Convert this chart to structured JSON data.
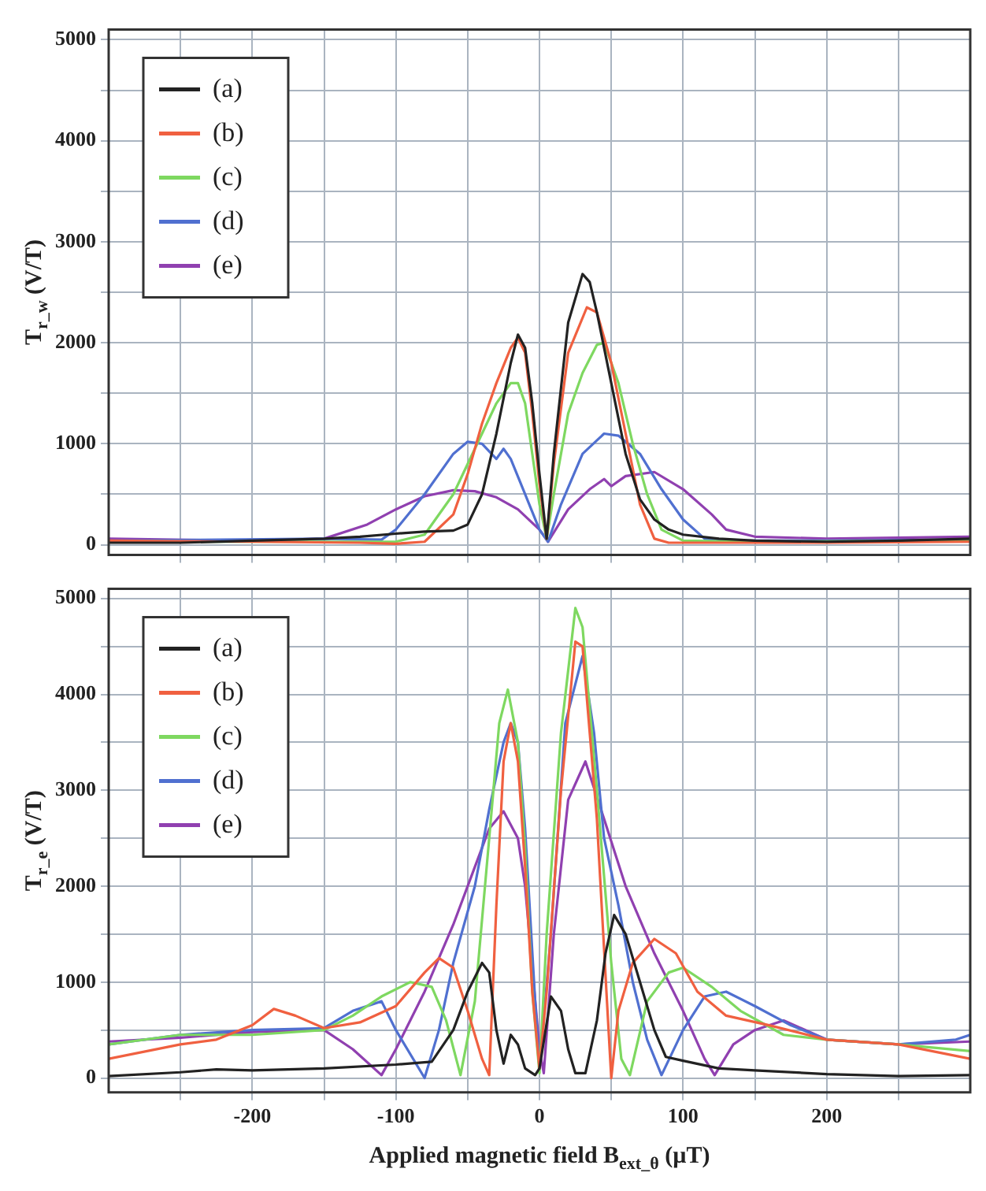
{
  "chart_data": [
    {
      "type": "line",
      "ylabel": "T$_{r_w}$ (V/T)",
      "xlim": [
        -300,
        300
      ],
      "ylim": [
        -100,
        5100
      ],
      "xticks": [
        -250,
        -200,
        -150,
        -100,
        -50,
        0,
        50,
        100,
        150,
        200,
        250
      ],
      "yticks": [
        0,
        {
          "value": 500,
          "label": null
        },
        1000,
        {
          "value": 1500,
          "label": null
        },
        2000,
        {
          "value": 2500,
          "label": null
        },
        3000,
        {
          "value": 3500,
          "label": null
        },
        4000,
        {
          "value": 4500,
          "label": null
        },
        5000
      ],
      "grid": true,
      "legend": "top left",
      "tick_labels": "y",
      "marker": "none",
      "line_style": "solid",
      "series": [
        {
          "name": "(a)",
          "color": "#222222",
          "x": [
            -300,
            -250,
            -200,
            -150,
            -125,
            -100,
            -80,
            -60,
            -50,
            -40,
            -30,
            -20,
            -15,
            -10,
            -5,
            0,
            5,
            10,
            20,
            30,
            35,
            40,
            50,
            60,
            70,
            80,
            90,
            100,
            125,
            150,
            200,
            250,
            300
          ],
          "values": [
            20,
            20,
            40,
            60,
            80,
            110,
            130,
            140,
            200,
            500,
            1100,
            1800,
            2080,
            1950,
            1400,
            700,
            60,
            900,
            2200,
            2680,
            2600,
            2300,
            1600,
            900,
            450,
            250,
            150,
            100,
            60,
            40,
            30,
            40,
            60
          ]
        },
        {
          "name": "(b)",
          "color": "#f06040",
          "x": [
            -300,
            -200,
            -125,
            -100,
            -80,
            -60,
            -50,
            -40,
            -30,
            -20,
            -15,
            -10,
            -5,
            0,
            5,
            10,
            20,
            33,
            40,
            50,
            60,
            70,
            80,
            90,
            125,
            200,
            300
          ],
          "values": [
            40,
            30,
            20,
            10,
            30,
            300,
            700,
            1200,
            1600,
            1950,
            2050,
            1900,
            1300,
            600,
            60,
            800,
            1900,
            2350,
            2300,
            1800,
            1100,
            400,
            60,
            20,
            20,
            20,
            30
          ]
        },
        {
          "name": "(c)",
          "color": "#7ed860",
          "x": [
            -300,
            -200,
            -100,
            -80,
            -60,
            -40,
            -30,
            -20,
            -15,
            -10,
            -5,
            0,
            5,
            10,
            20,
            30,
            40,
            45,
            55,
            65,
            75,
            85,
            100,
            150,
            300
          ],
          "values": [
            30,
            30,
            30,
            100,
            500,
            1100,
            1400,
            1600,
            1600,
            1400,
            900,
            400,
            60,
            500,
            1300,
            1700,
            1980,
            2000,
            1600,
            1000,
            500,
            150,
            40,
            30,
            40
          ]
        },
        {
          "name": "(d)",
          "color": "#5070d0",
          "x": [
            -300,
            -150,
            -110,
            -100,
            -80,
            -60,
            -50,
            -40,
            -30,
            -25,
            -20,
            -10,
            0,
            6,
            15,
            30,
            45,
            55,
            70,
            85,
            100,
            115,
            130,
            200,
            300
          ],
          "values": [
            40,
            60,
            50,
            150,
            500,
            900,
            1020,
            1000,
            850,
            950,
            850,
            500,
            150,
            30,
            400,
            900,
            1100,
            1080,
            900,
            550,
            250,
            60,
            40,
            40,
            50
          ]
        },
        {
          "name": "(e)",
          "color": "#9040b0",
          "x": [
            -300,
            -200,
            -150,
            -120,
            -100,
            -80,
            -60,
            -45,
            -30,
            -15,
            0,
            6,
            20,
            35,
            45,
            50,
            60,
            80,
            100,
            120,
            130,
            150,
            200,
            300
          ],
          "values": [
            60,
            40,
            60,
            200,
            350,
            480,
            540,
            530,
            470,
            350,
            150,
            30,
            350,
            550,
            650,
            580,
            680,
            720,
            550,
            300,
            150,
            80,
            60,
            80
          ]
        }
      ]
    },
    {
      "type": "line",
      "ylabel": "T$_{r_e}$ (V/T)",
      "xlabel": "Applied magnetic field B$_{ext_θ}$ (µT)",
      "xlim": [
        -300,
        300
      ],
      "ylim": [
        -150,
        5100
      ],
      "xticks": [
        {
          "value": -250,
          "label": null
        },
        {
          "value": -200,
          "label": "-200"
        },
        {
          "value": -150,
          "label": null
        },
        {
          "value": -100,
          "label": "-100"
        },
        {
          "value": -50,
          "label": null
        },
        0,
        {
          "value": 50,
          "label": null
        },
        100,
        {
          "value": 150,
          "label": null
        },
        200,
        {
          "value": 250,
          "label": null
        }
      ],
      "yticks": [
        0,
        {
          "value": 500,
          "label": null
        },
        1000,
        {
          "value": 1500,
          "label": null
        },
        2000,
        {
          "value": 2500,
          "label": null
        },
        3000,
        {
          "value": 3500,
          "label": null
        },
        4000,
        {
          "value": 4500,
          "label": null
        },
        5000
      ],
      "grid": true,
      "legend": "top left",
      "marker": "none",
      "line_style": "solid",
      "series": [
        {
          "name": "(a)",
          "color": "#222222",
          "x": [
            -300,
            -250,
            -225,
            -200,
            -150,
            -100,
            -75,
            -60,
            -50,
            -40,
            -35,
            -30,
            -25,
            -20,
            -15,
            -10,
            -3,
            0,
            8,
            15,
            20,
            25,
            32,
            40,
            46,
            52,
            60,
            70,
            80,
            88,
            100,
            125,
            150,
            200,
            250,
            300
          ],
          "values": [
            20,
            60,
            90,
            80,
            100,
            140,
            170,
            500,
            900,
            1200,
            1100,
            500,
            150,
            450,
            350,
            100,
            30,
            100,
            850,
            700,
            300,
            50,
            50,
            600,
            1300,
            1700,
            1500,
            1000,
            500,
            220,
            180,
            100,
            80,
            40,
            20,
            30
          ]
        },
        {
          "name": "(b)",
          "color": "#f06040",
          "x": [
            -300,
            -250,
            -225,
            -200,
            -185,
            -170,
            -150,
            -125,
            -100,
            -80,
            -70,
            -60,
            -50,
            -40,
            -35,
            -30,
            -25,
            -20,
            -15,
            -10,
            -5,
            0,
            5,
            15,
            25,
            30,
            40,
            47,
            50,
            55,
            65,
            80,
            95,
            110,
            130,
            160,
            200,
            250,
            300
          ],
          "values": [
            200,
            350,
            400,
            550,
            720,
            650,
            520,
            580,
            750,
            1100,
            1250,
            1150,
            700,
            200,
            30,
            1800,
            3300,
            3700,
            3300,
            2200,
            900,
            100,
            900,
            3000,
            4550,
            4500,
            2700,
            800,
            0,
            700,
            1200,
            1450,
            1300,
            900,
            650,
            550,
            400,
            350,
            200
          ]
        },
        {
          "name": "(c)",
          "color": "#7ed860",
          "x": [
            -300,
            -250,
            -200,
            -150,
            -130,
            -110,
            -90,
            -75,
            -65,
            -55,
            -45,
            -35,
            -28,
            -22,
            -15,
            -10,
            -5,
            0,
            5,
            15,
            25,
            30,
            40,
            50,
            57,
            63,
            75,
            90,
            100,
            120,
            140,
            170,
            200,
            250,
            300
          ],
          "values": [
            350,
            450,
            450,
            500,
            650,
            850,
            1000,
            950,
            600,
            30,
            800,
            2500,
            3700,
            4050,
            3500,
            2400,
            900,
            50,
            1500,
            3600,
            4900,
            4700,
            3000,
            1200,
            200,
            30,
            800,
            1100,
            1150,
            950,
            700,
            450,
            400,
            350,
            280
          ]
        },
        {
          "name": "(d)",
          "color": "#5070d0",
          "x": [
            -300,
            -250,
            -200,
            -150,
            -130,
            -110,
            -100,
            -80,
            -70,
            -60,
            -45,
            -35,
            -25,
            -20,
            -15,
            -10,
            -3,
            0,
            8,
            18,
            30,
            38,
            45,
            55,
            65,
            75,
            85,
            100,
            115,
            130,
            150,
            175,
            200,
            250,
            290,
            300
          ],
          "values": [
            350,
            450,
            500,
            520,
            700,
            800,
            500,
            0,
            500,
            1200,
            2000,
            2800,
            3500,
            3700,
            3500,
            2600,
            800,
            100,
            1500,
            3700,
            4400,
            3600,
            2500,
            1800,
            1000,
            400,
            30,
            500,
            850,
            900,
            750,
            550,
            400,
            350,
            400,
            450
          ]
        },
        {
          "name": "(e)",
          "color": "#9040b0",
          "x": [
            -300,
            -250,
            -200,
            -150,
            -130,
            -110,
            -100,
            -80,
            -60,
            -45,
            -35,
            -25,
            -15,
            -10,
            0,
            3,
            10,
            20,
            32,
            45,
            60,
            80,
            100,
            115,
            122,
            135,
            150,
            170,
            200,
            250,
            300
          ],
          "values": [
            380,
            420,
            480,
            500,
            300,
            30,
            300,
            900,
            1600,
            2200,
            2600,
            2780,
            2500,
            2000,
            300,
            50,
            1500,
            2900,
            3300,
            2700,
            2000,
            1300,
            700,
            200,
            30,
            350,
            500,
            600,
            400,
            350,
            380
          ]
        }
      ]
    }
  ]
}
